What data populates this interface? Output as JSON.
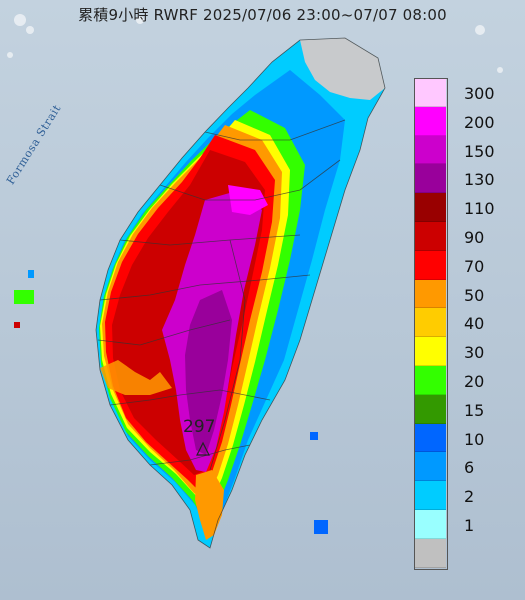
{
  "title": "累積9小時 RWRF 2025/07/06 23:00~07/07 08:00",
  "map_label": "Formosa Strait",
  "max_marker": {
    "label": "297"
  },
  "legend": [
    {
      "label": "300",
      "color": "#ffc8ff"
    },
    {
      "label": "200",
      "color": "#ff00ff"
    },
    {
      "label": "150",
      "color": "#cc00cc"
    },
    {
      "label": "130",
      "color": "#99009b"
    },
    {
      "label": "110",
      "color": "#990000"
    },
    {
      "label": "90",
      "color": "#cc0000"
    },
    {
      "label": "70",
      "color": "#ff0000"
    },
    {
      "label": "50",
      "color": "#ff9900"
    },
    {
      "label": "40",
      "color": "#ffcc00"
    },
    {
      "label": "30",
      "color": "#ffff00"
    },
    {
      "label": "20",
      "color": "#33ff00"
    },
    {
      "label": "15",
      "color": "#339900"
    },
    {
      "label": "10",
      "color": "#0066ff"
    },
    {
      "label": "6",
      "color": "#0099ff"
    },
    {
      "label": "2",
      "color": "#00ccff"
    },
    {
      "label": "1",
      "color": "#99ffff"
    },
    {
      "label": "",
      "color": "#c0c0c0"
    }
  ],
  "colors": {
    "sea": "#b9c9d8",
    "land_dry": "#c8cacc",
    "border": "#333333"
  }
}
